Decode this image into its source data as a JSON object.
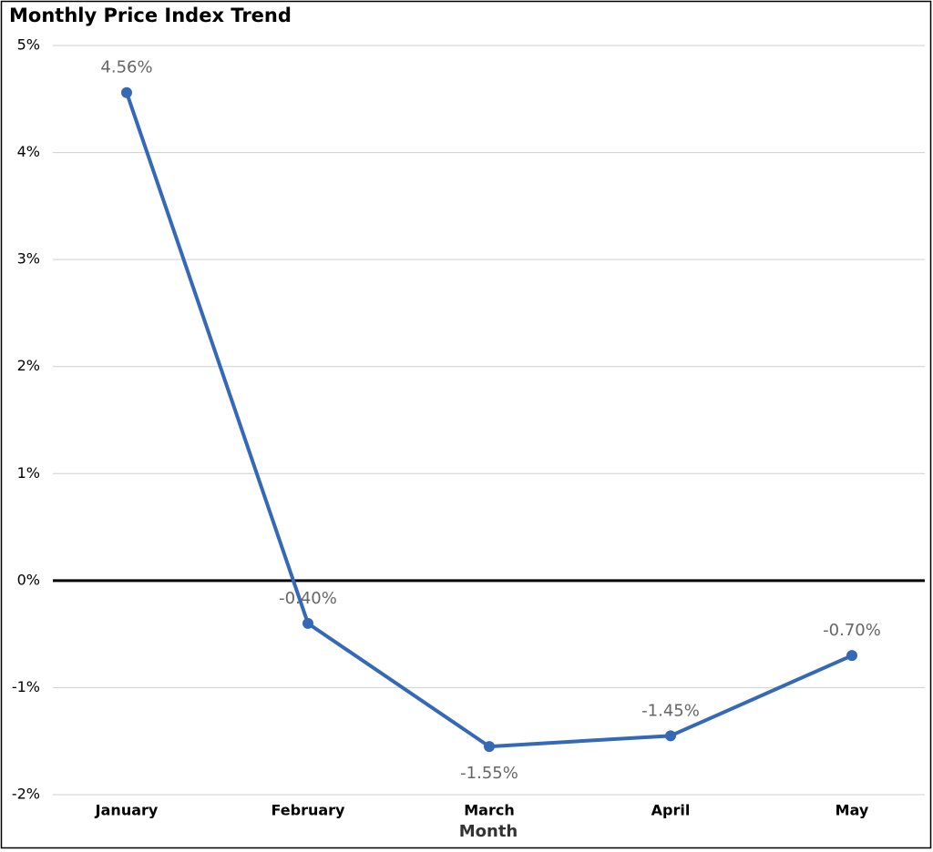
{
  "chart_data": {
    "type": "line",
    "title": "Monthly Price Index Trend",
    "x_label": "Month",
    "categories": [
      "January",
      "February",
      "March",
      "April",
      "May"
    ],
    "series": [
      {
        "color": "#3569b8",
        "values": [
          4.56,
          -0.4,
          -1.55,
          -1.45,
          -0.7
        ],
        "value_labels": [
          "4.56%",
          "-0.40%",
          "-1.55%",
          "-1.45%",
          "-0.70%"
        ]
      }
    ],
    "ylim": [
      -2,
      5
    ],
    "yticks": [
      {
        "value": -2,
        "label": "-2%"
      },
      {
        "value": -1,
        "label": "-1%"
      },
      {
        "value": 0,
        "label": "0%"
      },
      {
        "value": 1,
        "label": "1%"
      },
      {
        "value": 2,
        "label": "2%"
      },
      {
        "value": 3,
        "label": "3%"
      },
      {
        "value": 4,
        "label": "4%"
      },
      {
        "value": 5,
        "label": "5%"
      }
    ],
    "grid": true
  }
}
